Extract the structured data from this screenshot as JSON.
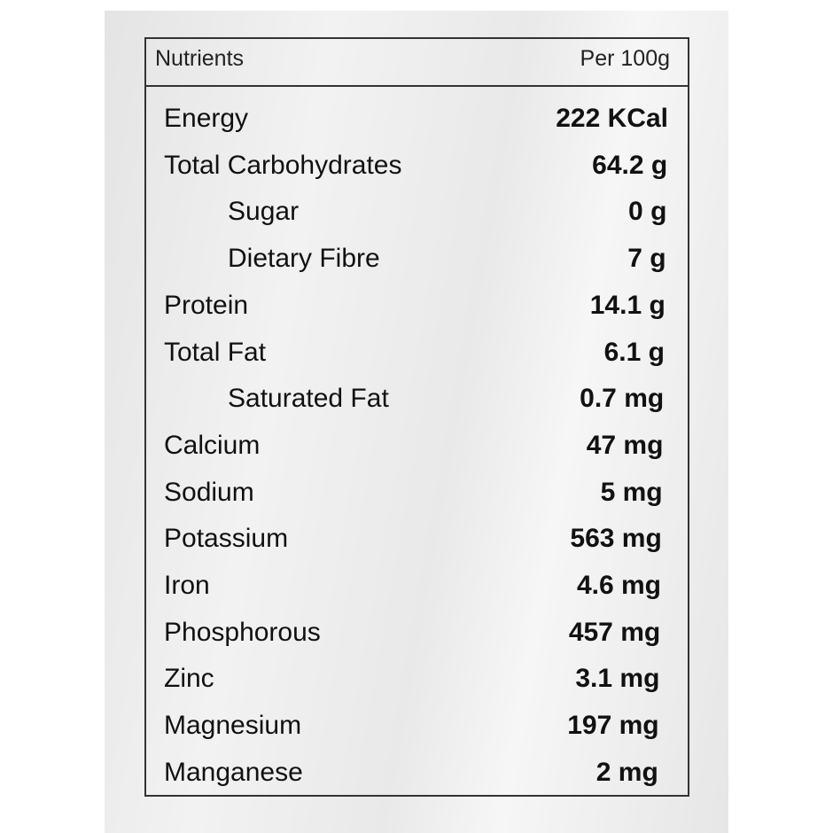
{
  "header": {
    "nutrients": "Nutrients",
    "per": "Per 100g"
  },
  "rows": [
    {
      "label": "Energy",
      "value": "222 KCal"
    },
    {
      "label": "Total Carbohydrates",
      "value": "64.2 g",
      "sub": [
        {
          "label": "Sugar",
          "value": "0 g"
        },
        {
          "label": "Dietary Fibre",
          "value": "7 g"
        }
      ]
    },
    {
      "label": "Protein",
      "value": "14.1 g"
    },
    {
      "label": "Total Fat",
      "value": "6.1 g",
      "sub": [
        {
          "label": "Saturated Fat",
          "value": "0.7 mg"
        }
      ]
    },
    {
      "label": "Calcium",
      "value": "47 mg"
    },
    {
      "label": "Sodium",
      "value": "5 mg"
    },
    {
      "label": "Potassium",
      "value": "563 mg"
    },
    {
      "label": "Iron",
      "value": "4.6 mg"
    },
    {
      "label": "Phosphorous",
      "value": "457 mg"
    },
    {
      "label": "Zinc",
      "value": "3.1 mg"
    },
    {
      "label": "Magnesium",
      "value": "197 mg"
    },
    {
      "label": "Manganese",
      "value": "2 mg"
    }
  ]
}
